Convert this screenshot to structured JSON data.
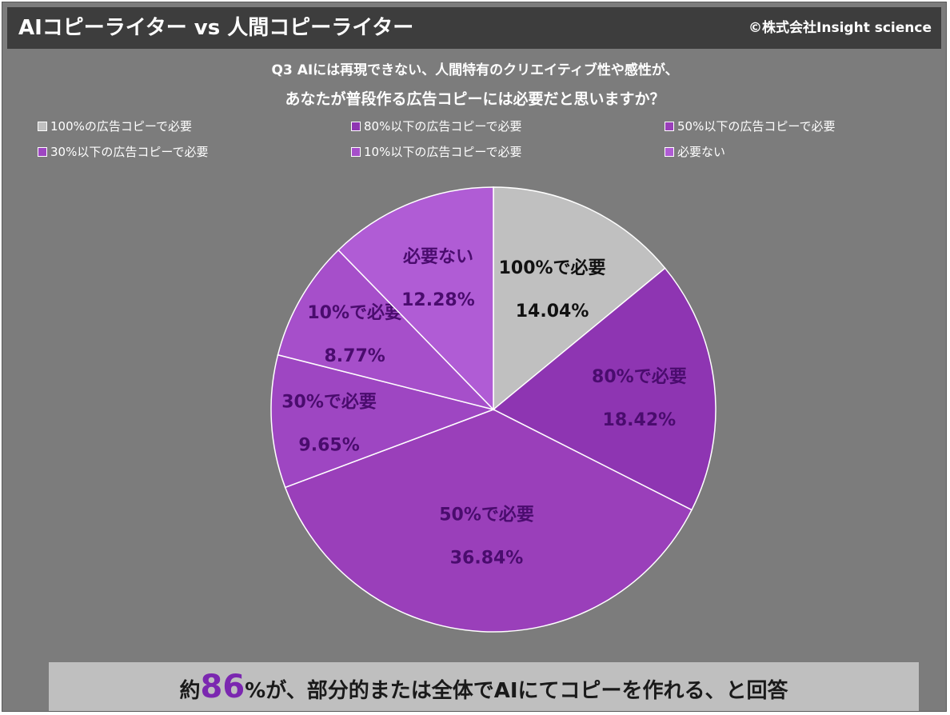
{
  "header": {
    "title": "AIコピーライター vs 人間コピーライター",
    "copyright": "©株式会社Insight science"
  },
  "question": {
    "line1": "Q3 AIには再現できない、人間特有のクリエイティブ性や感性が、",
    "line2": "あなたが普段作る広告コピーには必要だと思いますか？"
  },
  "legend": [
    {
      "label": "100%の広告コピーで必要",
      "color": "#c0c0c0"
    },
    {
      "label": "80%以下の広告コピーで必要",
      "color": "#8e35b2"
    },
    {
      "label": "50%以下の広告コピーで必要",
      "color": "#9a3fba"
    },
    {
      "label": "30%以下の広告コピーで必要",
      "color": "#9e46c2"
    },
    {
      "label": "10%以下の広告コピーで必要",
      "color": "#a64fca"
    },
    {
      "label": "必要ない",
      "color": "#b05cd5"
    }
  ],
  "chart_data": {
    "type": "pie",
    "start_angle_deg": 0,
    "direction": "clockwise",
    "slices": [
      {
        "name": "100%で必要",
        "value": 14.04,
        "value_label": "14.04%",
        "color": "#c0c0c0",
        "text_color": "#111111"
      },
      {
        "name": "80%で必要",
        "value": 18.42,
        "value_label": "18.42%",
        "color": "#8e35b2",
        "text_color": "#4a0c6e"
      },
      {
        "name": "50%で必要",
        "value": 36.84,
        "value_label": "36.84%",
        "color": "#9a3fba",
        "text_color": "#4a0c6e"
      },
      {
        "name": "30%で必要",
        "value": 9.65,
        "value_label": "9.65%",
        "color": "#9e46c2",
        "text_color": "#4a0c6e"
      },
      {
        "name": "10%で必要",
        "value": 8.77,
        "value_label": "8.77%",
        "color": "#a64fca",
        "text_color": "#4a0c6e"
      },
      {
        "name": "必要ない",
        "value": 12.28,
        "value_label": "12.28%",
        "color": "#b05cd5",
        "text_color": "#4a0c6e"
      }
    ]
  },
  "footer": {
    "prefix": "約",
    "highlight": "86",
    "suffix": "%が、部分的または全体でAIにてコピーを作れる、と回答"
  }
}
